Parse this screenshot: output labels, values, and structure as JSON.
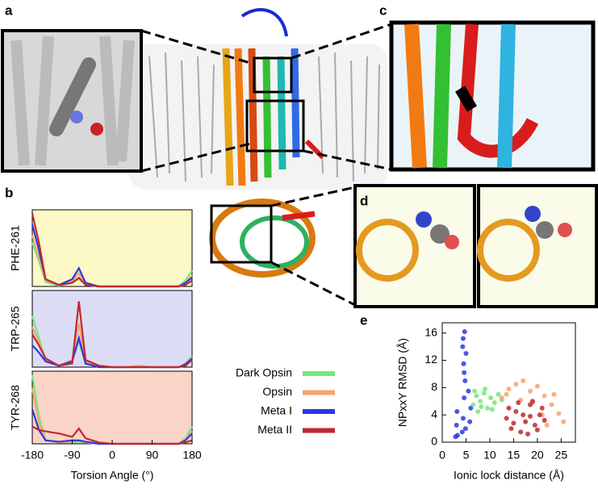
{
  "labels": [
    "a",
    "b",
    "c",
    "d",
    "e"
  ],
  "chart_data": [
    {
      "type": "line",
      "ylabel": "PHE-261",
      "background": "#fcf9c6",
      "x": [
        -180,
        -165,
        -150,
        -120,
        -90,
        -75,
        -60,
        -30,
        0,
        30,
        60,
        90,
        120,
        150,
        165,
        180
      ],
      "xlim": [
        -180,
        180
      ],
      "ylim": [
        0,
        1.05
      ],
      "series": [
        {
          "name": "Dark Opsin",
          "color": "#74e87c",
          "values": [
            0.6,
            0.35,
            0.06,
            0.01,
            0.05,
            0.1,
            0.03,
            0,
            0,
            0,
            0,
            0,
            0,
            0,
            0.08,
            0.22
          ]
        },
        {
          "name": "Opsin",
          "color": "#f6a46e",
          "values": [
            0.7,
            0.4,
            0.08,
            0.02,
            0.08,
            0.18,
            0.04,
            0,
            0,
            0,
            0,
            0,
            0,
            0,
            0.05,
            0.15
          ]
        },
        {
          "name": "Meta I",
          "color": "#2b38e6",
          "values": [
            0.85,
            0.5,
            0.1,
            0.02,
            0.1,
            0.25,
            0.05,
            0,
            0,
            0,
            0,
            0,
            0,
            0,
            0.05,
            0.12
          ]
        },
        {
          "name": "Meta II",
          "color": "#c0282e",
          "values": [
            1.0,
            0.6,
            0.1,
            0.02,
            0.05,
            0.12,
            0.02,
            0,
            0,
            0,
            0,
            0,
            0,
            0,
            0.02,
            0.08
          ]
        }
      ]
    },
    {
      "type": "line",
      "ylabel": "TRP-265",
      "background": "#dddcf5",
      "x": [
        -180,
        -165,
        -150,
        -120,
        -90,
        -75,
        -60,
        -30,
        0,
        30,
        60,
        90,
        120,
        150,
        165,
        180
      ],
      "xlim": [
        -180,
        180
      ],
      "ylim": [
        0,
        1.05
      ],
      "series": [
        {
          "color": "#74e87c",
          "values": [
            0.7,
            0.4,
            0.1,
            0.02,
            0.1,
            0.35,
            0.05,
            0,
            0,
            0,
            0,
            0,
            0,
            0,
            0.05,
            0.15
          ]
        },
        {
          "color": "#f6a46e",
          "values": [
            0.55,
            0.35,
            0.1,
            0.02,
            0.1,
            0.6,
            0.08,
            0.02,
            0,
            0,
            0.02,
            0,
            0,
            0,
            0.03,
            0.1
          ]
        },
        {
          "color": "#2b38e6",
          "values": [
            0.3,
            0.2,
            0.08,
            0.02,
            0.08,
            0.4,
            0.05,
            0,
            0,
            0,
            0,
            0,
            0,
            0,
            0.04,
            0.12
          ]
        },
        {
          "color": "#c0282e",
          "values": [
            0.45,
            0.3,
            0.12,
            0.02,
            0.05,
            0.9,
            0.1,
            0.02,
            0,
            0,
            0,
            0,
            0,
            0,
            0.02,
            0.1
          ]
        }
      ]
    },
    {
      "type": "line",
      "ylabel": "TYR-268",
      "xlabel": "Torsion Angle (°)",
      "background": "#fad4c7",
      "x": [
        -180,
        -165,
        -150,
        -120,
        -90,
        -75,
        -60,
        -30,
        0,
        30,
        60,
        90,
        120,
        150,
        165,
        180
      ],
      "xlim": [
        -180,
        180
      ],
      "ylim": [
        0,
        1.05
      ],
      "xticks": [
        -180,
        -90,
        0,
        90,
        180
      ],
      "series": [
        {
          "color": "#74e87c",
          "values": [
            1.0,
            0.4,
            0.05,
            0.02,
            0.02,
            0.03,
            0.02,
            0,
            0,
            0,
            0,
            0,
            0,
            0,
            0.08,
            0.25
          ]
        },
        {
          "color": "#f6a46e",
          "values": [
            0.8,
            0.3,
            0.05,
            0.02,
            0.03,
            0.05,
            0.02,
            0,
            0,
            0,
            0,
            0,
            0,
            0,
            0.06,
            0.18
          ]
        },
        {
          "color": "#2b38e6",
          "values": [
            0.5,
            0.2,
            0.05,
            0.03,
            0.05,
            0.05,
            0.03,
            0,
            0,
            0,
            0,
            0,
            0,
            0,
            0.05,
            0.15
          ]
        },
        {
          "color": "#c0282e",
          "values": [
            0.25,
            0.2,
            0.18,
            0.15,
            0.1,
            0.22,
            0.08,
            0.02,
            0,
            0,
            0,
            0,
            0,
            0,
            0.02,
            0.05
          ]
        }
      ]
    },
    {
      "type": "scatter",
      "xlabel": "Ionic lock distance (Å)",
      "ylabel": "NPxxY RMSD (Å)",
      "xlim": [
        0,
        28
      ],
      "ylim": [
        0,
        17.5
      ],
      "xticks": [
        0,
        5,
        10,
        15,
        20,
        25
      ],
      "yticks": [
        0,
        4,
        8,
        12,
        16
      ],
      "series": [
        {
          "color": "#2b38e6",
          "x": [
            2.8,
            3.0,
            3.1,
            4.2,
            4.4,
            4.6,
            4.8,
            4.5,
            4.3,
            4.7,
            5.0,
            5.5,
            6.0,
            3.2,
            4.9,
            5.8,
            4.4,
            4.6
          ],
          "y": [
            0.8,
            2.5,
            4.5,
            1.5,
            3.5,
            6.5,
            9.0,
            11.5,
            14.0,
            16.2,
            13.0,
            7.5,
            5.0,
            1.0,
            2.0,
            3.0,
            15.2,
            10.2
          ]
        },
        {
          "color": "#74e87c",
          "x": [
            6.5,
            7.2,
            8.0,
            8.8,
            9.5,
            10.2,
            11.0,
            11.8,
            7.5,
            9.0,
            10.5,
            12.5,
            8.2,
            6.8
          ],
          "y": [
            5.5,
            6.8,
            6.0,
            7.2,
            5.0,
            6.5,
            5.8,
            7.0,
            4.5,
            7.8,
            4.8,
            6.2,
            5.2,
            7.5
          ]
        },
        {
          "color": "#f6a46e",
          "x": [
            12.5,
            14.0,
            15.5,
            17.0,
            18.5,
            20.0,
            21.5,
            23.0,
            24.5,
            25.5,
            22.0,
            19.0,
            16.5,
            13.5,
            21.0,
            23.5
          ],
          "y": [
            6.5,
            7.8,
            8.5,
            9.0,
            7.5,
            8.2,
            6.8,
            5.5,
            4.2,
            3.0,
            2.5,
            5.8,
            6.2,
            7.0,
            4.0,
            7.0
          ]
        },
        {
          "color": "#c0282e",
          "x": [
            13.5,
            14.5,
            15.5,
            16.5,
            17.5,
            18.5,
            19.5,
            20.5,
            21.5,
            16.0,
            18.0,
            20.0,
            17.0,
            19.0,
            15.0,
            21.0,
            14.0,
            18.5
          ],
          "y": [
            3.5,
            2.0,
            4.5,
            1.5,
            3.0,
            5.5,
            2.5,
            4.0,
            3.2,
            5.8,
            1.2,
            1.8,
            4.0,
            6.0,
            2.8,
            5.0,
            5.0,
            3.8
          ]
        }
      ]
    }
  ]
}
